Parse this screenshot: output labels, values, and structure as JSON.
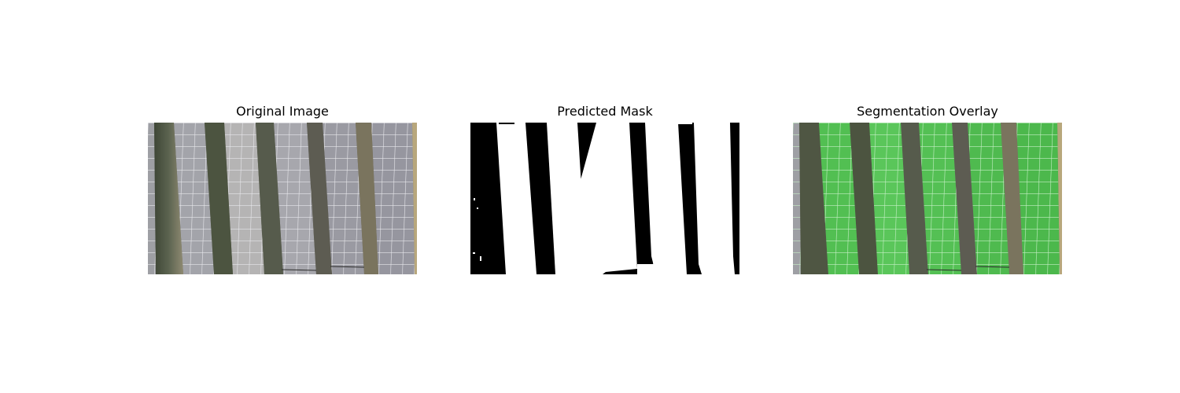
{
  "figure": {
    "panels": [
      {
        "title": "Original Image",
        "kind": "original"
      },
      {
        "title": "Predicted Mask",
        "kind": "mask"
      },
      {
        "title": "Segmentation Overlay",
        "kind": "overlay"
      }
    ],
    "colors": {
      "background": "#ffffff",
      "panel_silver": "#a3a4a9",
      "grass_strip": "#545a46",
      "dirt_edge": "#b8a77c",
      "mask_foreground": "#ffffff",
      "mask_background": "#000000",
      "overlay_green": "#4fc24f",
      "cell_grid": "#e8e8ec"
    }
  }
}
